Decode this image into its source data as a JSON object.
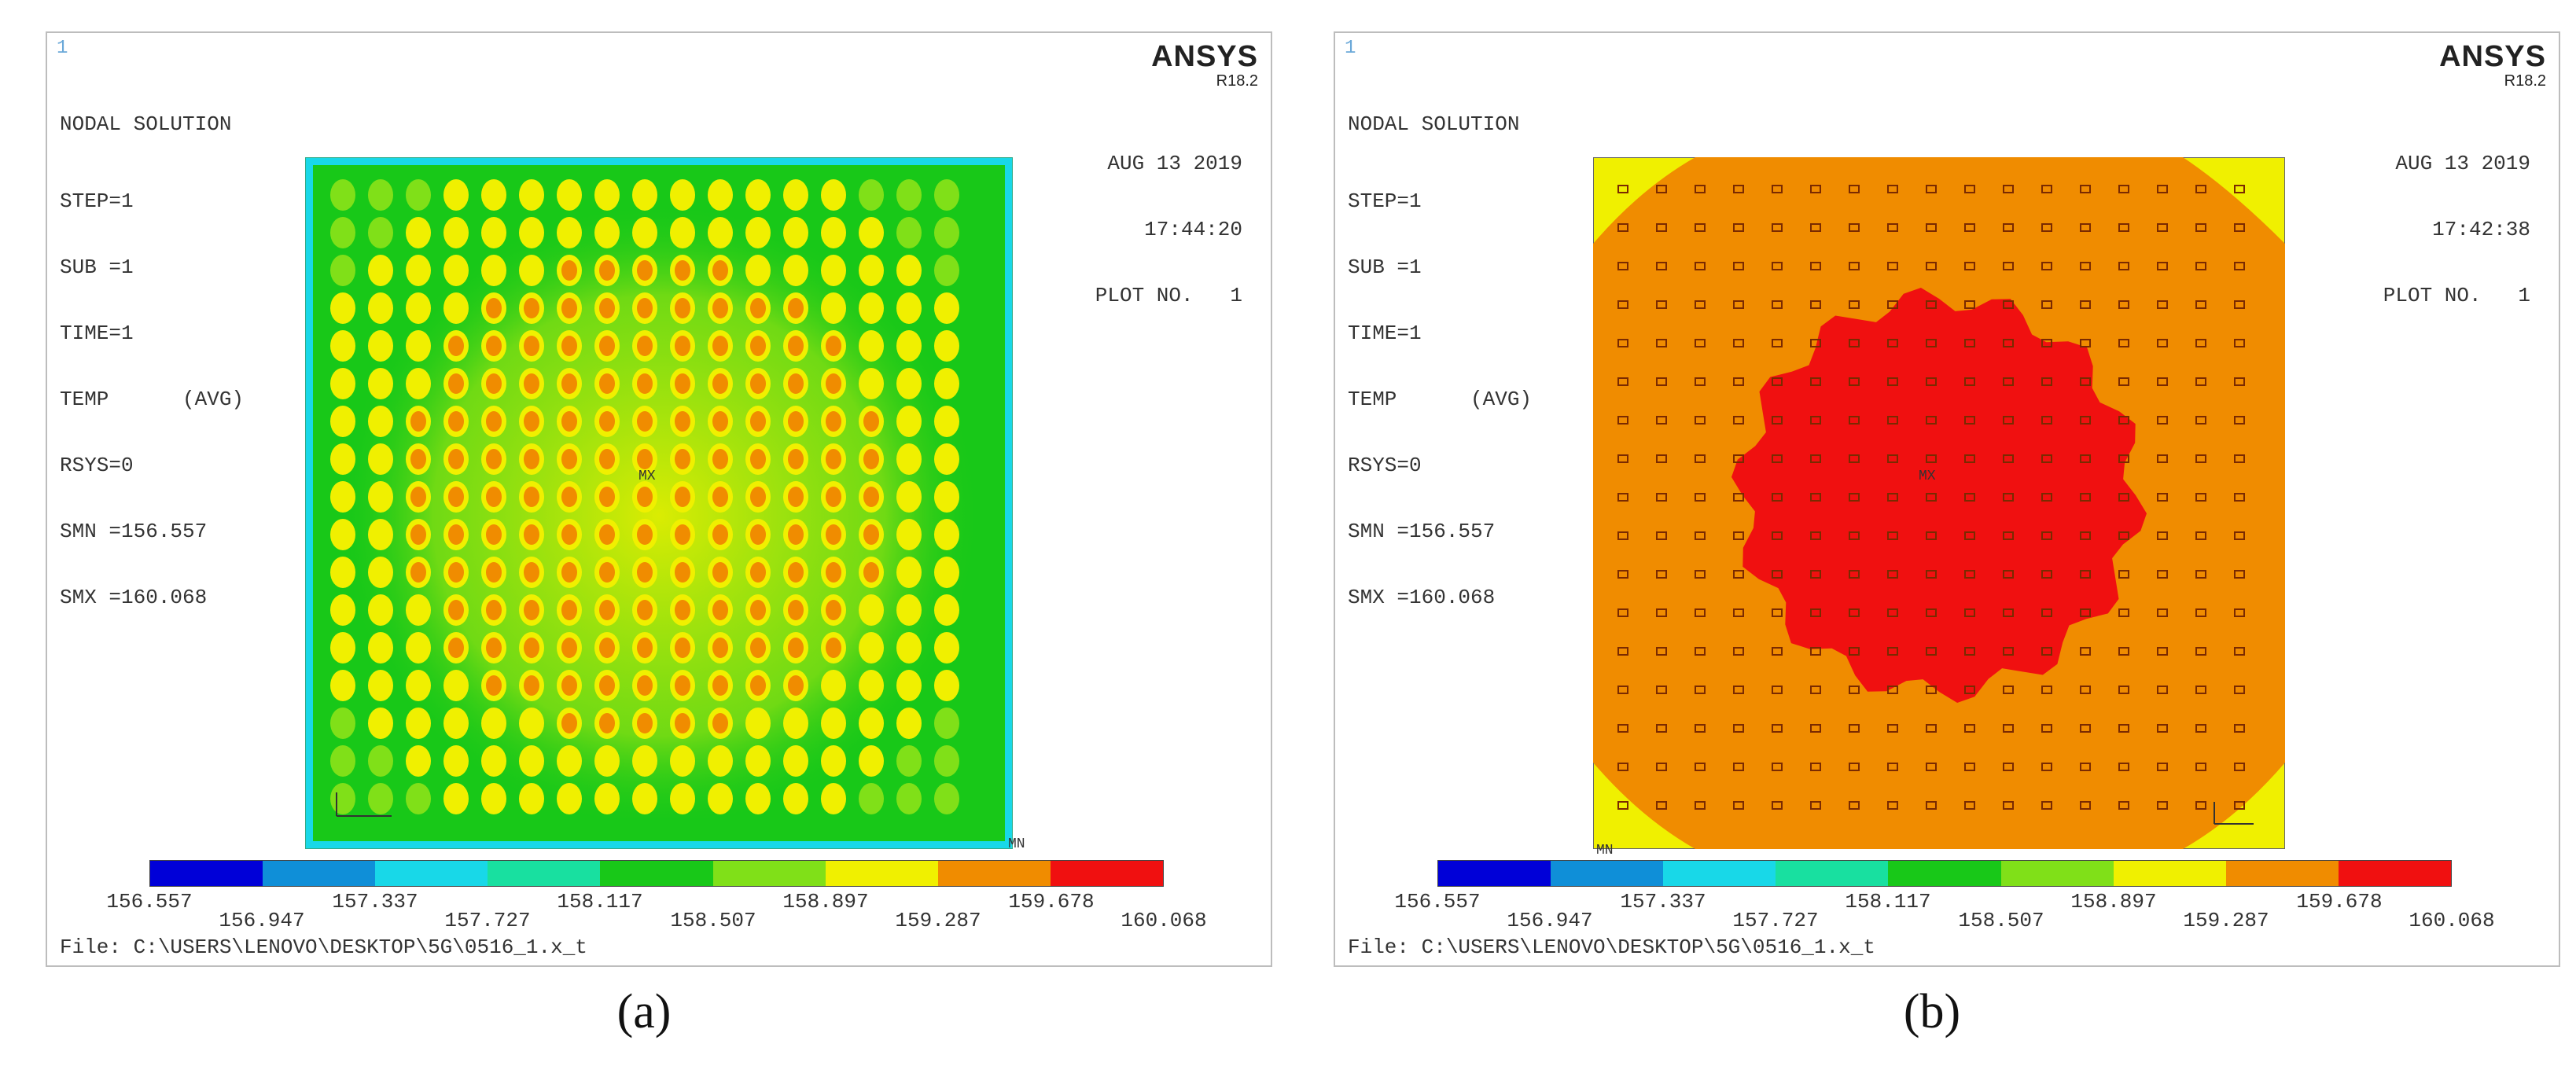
{
  "panels": [
    {
      "id": "a",
      "corner_number": "1",
      "title": "NODAL SOLUTION",
      "info_lines": [
        "STEP=1",
        "SUB =1",
        "TIME=1",
        "TEMP      (AVG)",
        "RSYS=0",
        "SMN =156.557",
        "SMX =160.068"
      ],
      "brand": "ANSYS",
      "release": "R18.2",
      "date": "AUG 13 2019",
      "time": "17:44:20",
      "plot_no": "PLOT NO.   1",
      "mx_label": "MX",
      "mn_label": "MN",
      "file": "File: C:\\USERS\\LENOVO\\DESKTOP\\5G\\0516_1.x_t",
      "caption": "(a)"
    },
    {
      "id": "b",
      "corner_number": "1",
      "title": "NODAL SOLUTION",
      "info_lines": [
        "STEP=1",
        "SUB =1",
        "TIME=1",
        "TEMP      (AVG)",
        "RSYS=0",
        "SMN =156.557",
        "SMX =160.068"
      ],
      "brand": "ANSYS",
      "release": "R18.2",
      "date": "AUG 13 2019",
      "time": "17:42:38",
      "plot_no": "PLOT NO.   1",
      "mx_label": "MX",
      "mn_label": "MN",
      "file": "File: C:\\USERS\\LENOVO\\DESKTOP\\5G\\0516_1.x_t",
      "caption": "(b)"
    }
  ],
  "legend": {
    "colors": [
      "#0000d8",
      "#0f8fd8",
      "#18d8e8",
      "#18e0a0",
      "#18c818",
      "#80e018",
      "#f0f000",
      "#f08c00",
      "#f01010"
    ],
    "ticks_top": [
      "156.557",
      "157.337",
      "158.117",
      "158.897",
      "159.678"
    ],
    "ticks_bottom": [
      "156.947",
      "157.727",
      "158.507",
      "159.287",
      "160.068"
    ]
  },
  "plot_colors": {
    "border_cyan": "#18d8e8",
    "green": "#18c818",
    "yellowgreen": "#80e018",
    "yellow": "#f0f000",
    "orange": "#f08c00",
    "red": "#f01010"
  }
}
